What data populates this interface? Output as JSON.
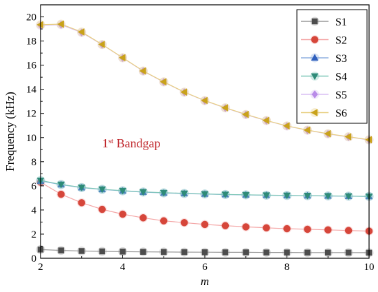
{
  "chart_data": {
    "type": "line",
    "title": "",
    "xlabel": "m",
    "ylabel": "Frequency (kHz)",
    "xlim": [
      2,
      10
    ],
    "ylim": [
      0,
      21
    ],
    "xticks": [
      2,
      4,
      6,
      8,
      10
    ],
    "yticks": [
      0,
      2,
      4,
      6,
      8,
      10,
      12,
      14,
      16,
      18,
      20
    ],
    "grid": false,
    "legend_position": "top-right",
    "annotation": {
      "text_main": "1",
      "text_sup": "st",
      "text_rest": " Bandgap",
      "x": 3.5,
      "y": 9.2,
      "color": "#c0282d"
    },
    "x": [
      2,
      2.5,
      3,
      3.5,
      4,
      4.5,
      5,
      5.5,
      6,
      6.5,
      7,
      7.5,
      8,
      8.5,
      9,
      9.5,
      10
    ],
    "series": [
      {
        "name": "S1",
        "marker": "square",
        "color": "#4d4d4d",
        "line_color": "#9a9a9a",
        "values": [
          0.72,
          0.65,
          0.6,
          0.57,
          0.55,
          0.53,
          0.52,
          0.51,
          0.5,
          0.49,
          0.49,
          0.48,
          0.48,
          0.47,
          0.47,
          0.47,
          0.46
        ]
      },
      {
        "name": "S2",
        "marker": "circle",
        "color": "#d6463a",
        "line_color": "#f4a6a6",
        "values": [
          6.3,
          5.3,
          4.6,
          4.05,
          3.65,
          3.35,
          3.1,
          2.95,
          2.8,
          2.7,
          2.6,
          2.52,
          2.45,
          2.4,
          2.35,
          2.3,
          2.25
        ]
      },
      {
        "name": "S3",
        "marker": "triangle-up",
        "color": "#2f5fbd",
        "line_color": "#8fb0e0",
        "values": [
          6.4,
          6.1,
          5.85,
          5.7,
          5.58,
          5.48,
          5.41,
          5.36,
          5.32,
          5.28,
          5.25,
          5.22,
          5.2,
          5.18,
          5.16,
          5.14,
          5.12
        ]
      },
      {
        "name": "S4",
        "marker": "triangle-down",
        "color": "#2e8b78",
        "line_color": "#7fc7b8",
        "values": [
          6.45,
          6.12,
          5.87,
          5.72,
          5.6,
          5.5,
          5.43,
          5.38,
          5.33,
          5.29,
          5.26,
          5.23,
          5.21,
          5.19,
          5.17,
          5.15,
          5.13
        ]
      },
      {
        "name": "S5",
        "marker": "diamond",
        "color": "#b98be8",
        "line_color": "#d8bdf3",
        "values": [
          19.3,
          19.35,
          18.7,
          17.7,
          16.6,
          15.5,
          14.6,
          13.75,
          13.05,
          12.45,
          11.9,
          11.4,
          10.95,
          10.6,
          10.3,
          10.05,
          9.8
        ]
      },
      {
        "name": "S6",
        "marker": "triangle-left",
        "color": "#c9a21a",
        "line_color": "#e8cf80",
        "values": [
          19.35,
          19.4,
          18.75,
          17.72,
          16.62,
          15.52,
          14.62,
          13.77,
          13.07,
          12.47,
          11.92,
          11.42,
          10.97,
          10.62,
          10.32,
          10.07,
          9.82
        ]
      }
    ]
  }
}
